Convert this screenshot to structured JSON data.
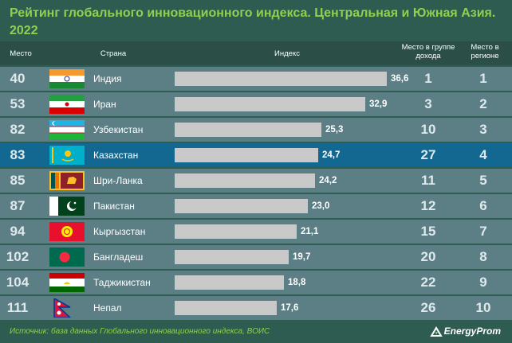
{
  "title": "Рейтинг глобального инновационного индекса. Центральная и Южная Азия. 2022",
  "headers": {
    "rank": "Место",
    "country": "Страна",
    "index": "Индекс",
    "income": "Место в группе дохода",
    "region": "Место в регионе"
  },
  "chart_data": {
    "type": "bar",
    "title": "Рейтинг глобального инновационного индекса. Центральная и Южная Азия. 2022",
    "categories": [
      "Индия",
      "Иран",
      "Узбекистан",
      "Казахстан",
      "Шри-Ланка",
      "Пакистан",
      "Кыргызстан",
      "Бангладеш",
      "Таджикистан",
      "Непал"
    ],
    "values": [
      36.6,
      32.9,
      25.3,
      24.7,
      24.2,
      23.0,
      21.1,
      19.7,
      18.8,
      17.6
    ],
    "value_labels": [
      "36,6",
      "32,9",
      "25,3",
      "24,7",
      "24,2",
      "23,0",
      "21,1",
      "19,7",
      "18,8",
      "17,6"
    ],
    "ylim": [
      0,
      40
    ]
  },
  "rows": [
    {
      "rank": "40",
      "country": "Индия",
      "flag": "india-flag",
      "income_rank": "1",
      "region_rank": "1"
    },
    {
      "rank": "53",
      "country": "Иран",
      "flag": "iran-flag",
      "income_rank": "3",
      "region_rank": "2"
    },
    {
      "rank": "82",
      "country": "Узбекистан",
      "flag": "uzbekistan-flag",
      "income_rank": "10",
      "region_rank": "3"
    },
    {
      "rank": "83",
      "country": "Казахстан",
      "flag": "kazakhstan-flag",
      "income_rank": "27",
      "region_rank": "4"
    },
    {
      "rank": "85",
      "country": "Шри-Ланка",
      "flag": "sri-lanka-flag",
      "income_rank": "11",
      "region_rank": "5"
    },
    {
      "rank": "87",
      "country": "Пакистан",
      "flag": "pakistan-flag",
      "income_rank": "12",
      "region_rank": "6"
    },
    {
      "rank": "94",
      "country": "Кыргызстан",
      "flag": "kyrgyzstan-flag",
      "income_rank": "15",
      "region_rank": "7"
    },
    {
      "rank": "102",
      "country": "Бангладеш",
      "flag": "bangladesh-flag",
      "income_rank": "20",
      "region_rank": "8"
    },
    {
      "rank": "104",
      "country": "Таджикистан",
      "flag": "tajikistan-flag",
      "income_rank": "22",
      "region_rank": "9"
    },
    {
      "rank": "111",
      "country": "Непал",
      "flag": "nepal-flag",
      "income_rank": "26",
      "region_rank": "10"
    }
  ],
  "highlighted_country": "Казахстан",
  "colors": {
    "background": "#2f5c50",
    "title": "#8ed14f",
    "row": "#5c7f86",
    "highlight_row": "#136892",
    "bar": "#c9c9c9"
  },
  "source": "Источник: база данных Глобального инновационного индекса, ВОИС",
  "logo": "EnergyProm"
}
